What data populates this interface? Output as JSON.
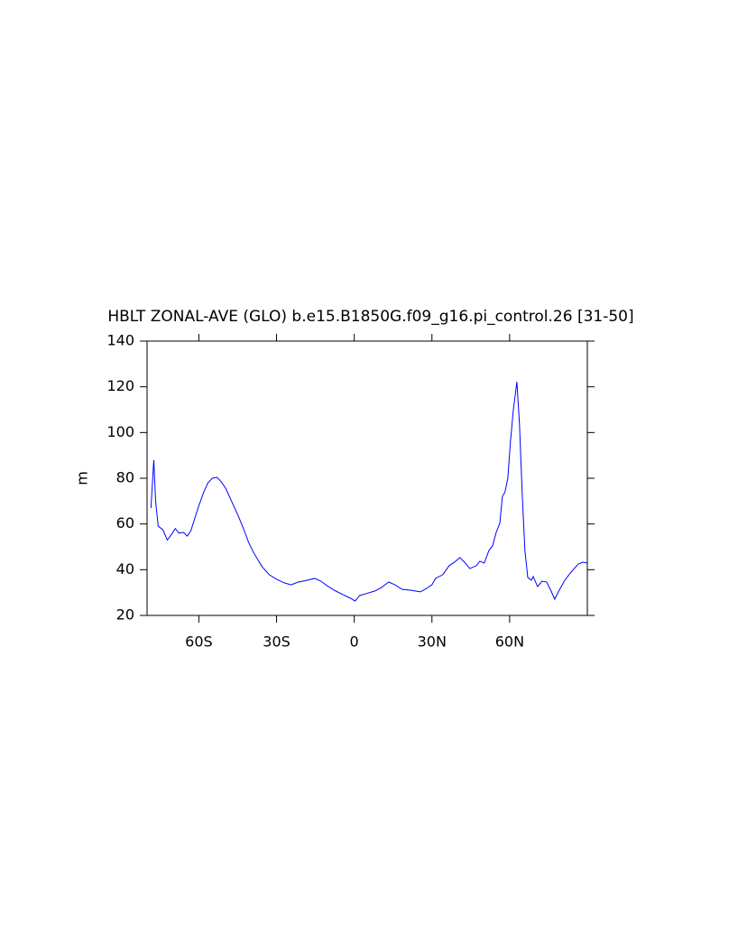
{
  "chart_data": {
    "type": "line",
    "title": "HBLT ZONAL-AVE (GLO) b.e15.B1850G.f09_g16.pi_control.26 [31-50]",
    "y_label": "m",
    "x": [
      -78.5,
      -77.4,
      -76.7,
      -75.7,
      -73.9,
      -72.2,
      -70.5,
      -69.1,
      -67.7,
      -65.9,
      -64.5,
      -63.1,
      -61.7,
      -60,
      -58.2,
      -56.5,
      -54.8,
      -53,
      -51.3,
      -49.5,
      -47.8,
      -46,
      -44.3,
      -42.6,
      -40.8,
      -39.1,
      -37.3,
      -35.6,
      -32.8,
      -30,
      -26.9,
      -24.4,
      -21.6,
      -18.1,
      -15.3,
      -12.9,
      -10.5,
      -7.7,
      -4.2,
      -1.4,
      0.3,
      2.1,
      4.5,
      8,
      10.5,
      13.3,
      15.7,
      18.5,
      22,
      25.5,
      27.9,
      30,
      31.4,
      34.2,
      36.6,
      38.7,
      40.8,
      42.9,
      44.6,
      47.1,
      48.5,
      50.2,
      52,
      53.4,
      54.8,
      56.2,
      57.2,
      58.2,
      59.3,
      60.3,
      61.4,
      62.8,
      63.8,
      64.9,
      65.9,
      67,
      68.4,
      69.1,
      70.8,
      72.5,
      74.3,
      76,
      77.4,
      78.8,
      81.3,
      83.7,
      86.5,
      88.3,
      90
    ],
    "series": [
      {
        "name": "HBLT",
        "color": "#0000ff",
        "values": [
          67,
          88,
          70,
          59,
          57.5,
          53,
          55.5,
          58,
          56,
          56.3,
          54.7,
          57,
          62,
          68,
          73.7,
          78,
          80,
          80.4,
          78.4,
          75.3,
          71,
          66.6,
          62.2,
          57.5,
          52,
          48,
          44.5,
          41.3,
          37.8,
          35.8,
          34.2,
          33.4,
          34.6,
          35.4,
          36.2,
          35,
          33,
          31,
          29,
          27.5,
          26.3,
          28.7,
          29.5,
          30.7,
          32.2,
          34.6,
          33.4,
          31.4,
          31,
          30.3,
          31.8,
          33.4,
          36.2,
          37.8,
          41.7,
          43.3,
          45.3,
          42.9,
          40.5,
          41.7,
          43.7,
          42.9,
          48.4,
          50.4,
          56.3,
          60.3,
          72,
          74,
          80,
          95.8,
          109.6,
          122.2,
          103.7,
          72,
          48.4,
          36.6,
          35.4,
          37,
          32.6,
          35,
          34.6,
          30.7,
          27.1,
          30.3,
          35.4,
          38.9,
          42.5,
          43.3,
          42.9
        ]
      }
    ],
    "xlim": [
      -80,
      90
    ],
    "xticks": [
      {
        "value": -60,
        "label": "60S"
      },
      {
        "value": -30,
        "label": "30S"
      },
      0,
      {
        "value": 30,
        "label": "30N"
      },
      {
        "value": 60,
        "label": "60N"
      }
    ],
    "ylim": [
      20,
      140
    ],
    "yticks": [
      20,
      40,
      60,
      80,
      100,
      120,
      140
    ]
  }
}
